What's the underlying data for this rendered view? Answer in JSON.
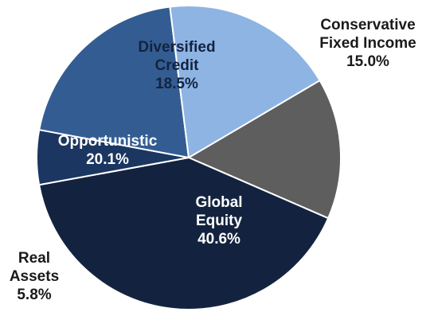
{
  "chart_data": {
    "type": "pie",
    "title": "",
    "slices": [
      {
        "label_lines": [
          "Conservative",
          "Fixed Income"
        ],
        "value": 15.0,
        "value_text": "15.0%",
        "color": "#5e5e5e",
        "label_color": "#1a1a1a"
      },
      {
        "label_lines": [
          "Global",
          "Equity"
        ],
        "value": 40.6,
        "value_text": "40.6%",
        "color": "#13233f",
        "label_color": "#ffffff"
      },
      {
        "label_lines": [
          "Real",
          "Assets"
        ],
        "value": 5.8,
        "value_text": "5.8%",
        "color": "#1b3660",
        "label_color": "#1a1a1a"
      },
      {
        "label_lines": [
          "Opportunistic"
        ],
        "value": 20.1,
        "value_text": "20.1%",
        "color": "#335d92",
        "label_color": "#ffffff"
      },
      {
        "label_lines": [
          "Diversified",
          "Credit"
        ],
        "value": 18.5,
        "value_text": "18.5%",
        "color": "#8eb4e3",
        "label_color": "#13233f"
      }
    ]
  }
}
